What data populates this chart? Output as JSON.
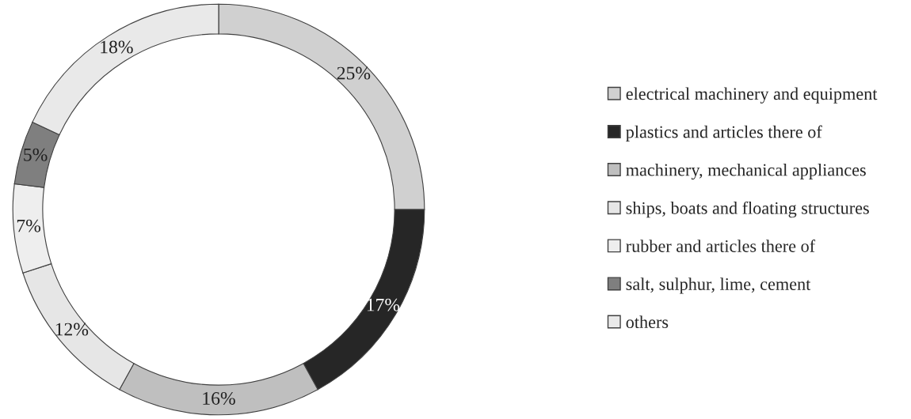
{
  "chart_data": {
    "type": "donut",
    "categories": [
      "electrical machinery and equipment",
      "plastics and articles there of",
      "machinery, mechanical appliances",
      "ships, boats and floating structures",
      "rubber and articles there of",
      "salt, sulphur, lime, cement",
      "others"
    ],
    "values": [
      25,
      17,
      16,
      12,
      7,
      5,
      18
    ],
    "colors": [
      "#d0d0d0",
      "#262626",
      "#bfbfbf",
      "#e6e6e6",
      "#eeeeee",
      "#7f7f7f",
      "#e9e9e9"
    ],
    "value_labels": [
      "25%",
      "17%",
      "16%",
      "12%",
      "7%",
      "5%",
      "18%"
    ],
    "legend": "right"
  }
}
